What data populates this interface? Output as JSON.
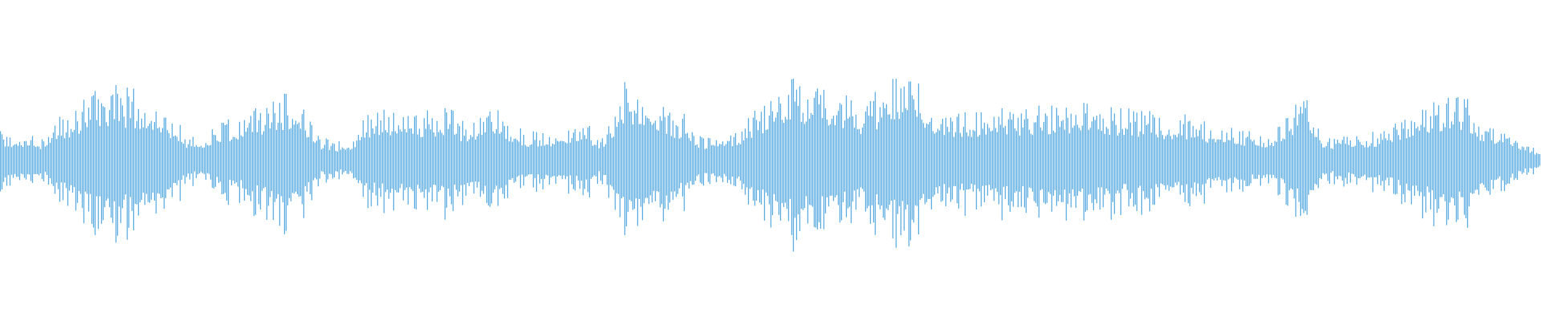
{
  "waveform": {
    "color": "#5DADE2",
    "background": "#FFFFFF",
    "envelope": [
      [
        0.0,
        0.25
      ],
      [
        0.032,
        0.2
      ],
      [
        0.038,
        0.4
      ],
      [
        0.07,
        0.65
      ],
      [
        0.096,
        0.6
      ],
      [
        0.128,
        0.2
      ],
      [
        0.147,
        0.35
      ],
      [
        0.191,
        0.6
      ],
      [
        0.21,
        0.2
      ],
      [
        0.226,
        0.15
      ],
      [
        0.236,
        0.4
      ],
      [
        0.255,
        0.45
      ],
      [
        0.293,
        0.45
      ],
      [
        0.3,
        0.35
      ],
      [
        0.319,
        0.45
      ],
      [
        0.344,
        0.25
      ],
      [
        0.383,
        0.3
      ],
      [
        0.389,
        0.2
      ],
      [
        0.408,
        0.7
      ],
      [
        0.446,
        0.4
      ],
      [
        0.456,
        0.2
      ],
      [
        0.472,
        0.25
      ],
      [
        0.497,
        0.5
      ],
      [
        0.51,
        0.7
      ],
      [
        0.542,
        0.65
      ],
      [
        0.555,
        0.5
      ],
      [
        0.587,
        0.75
      ],
      [
        0.619,
        0.4
      ],
      [
        0.638,
        0.45
      ],
      [
        0.702,
        0.5
      ],
      [
        0.733,
        0.45
      ],
      [
        0.765,
        0.4
      ],
      [
        0.797,
        0.3
      ],
      [
        0.823,
        0.25
      ],
      [
        0.848,
        0.55
      ],
      [
        0.861,
        0.2
      ],
      [
        0.893,
        0.25
      ],
      [
        0.925,
        0.5
      ],
      [
        0.944,
        0.6
      ],
      [
        0.969,
        0.3
      ],
      [
        1.0,
        0.1
      ]
    ]
  }
}
